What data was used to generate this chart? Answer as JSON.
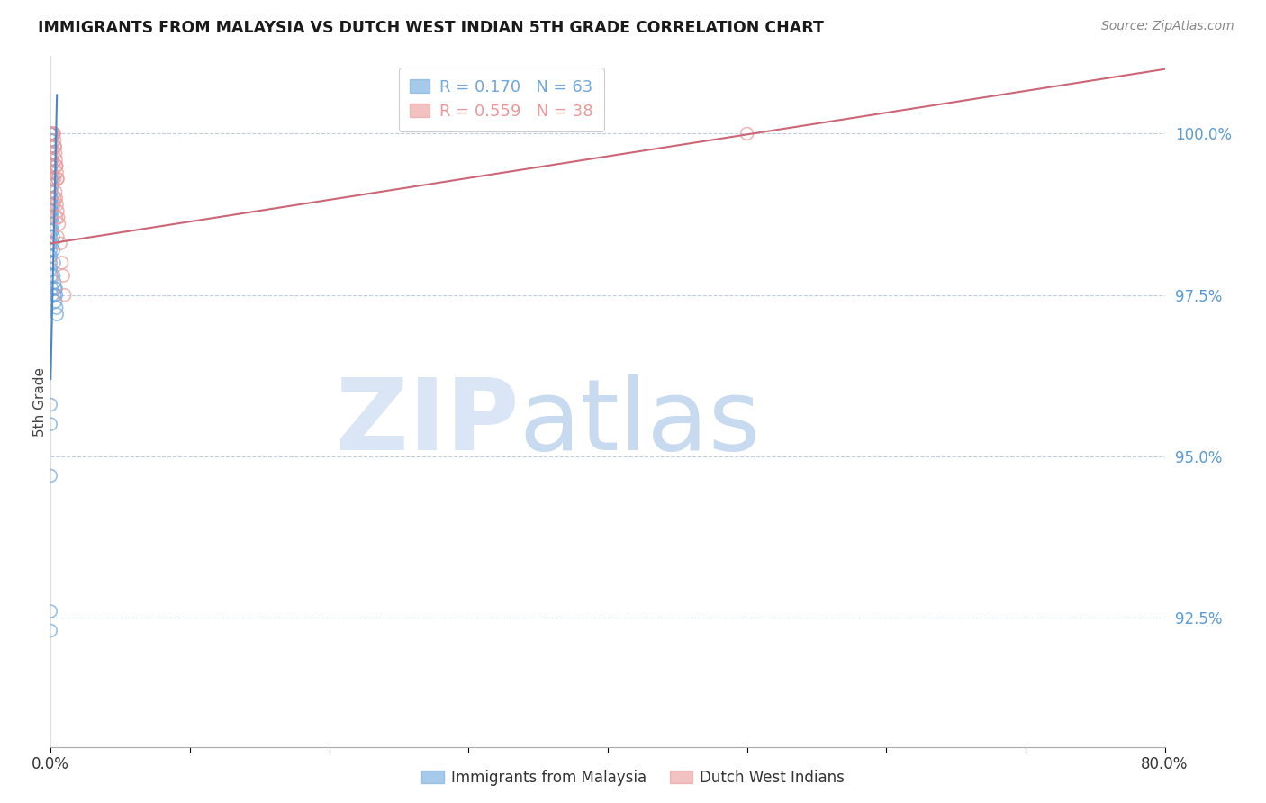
{
  "title": "IMMIGRANTS FROM MALAYSIA VS DUTCH WEST INDIAN 5TH GRADE CORRELATION CHART",
  "source": "Source: ZipAtlas.com",
  "ylabel": "5th Grade",
  "x_range": [
    0.0,
    80.0
  ],
  "y_range": [
    90.5,
    101.2
  ],
  "blue_color": "#6fa8dc",
  "pink_color": "#ea9999",
  "trendline_blue": "#4a86c8",
  "trendline_pink": "#cc6677",
  "blue_R": 0.17,
  "blue_N": 63,
  "pink_R": 0.559,
  "pink_N": 38,
  "blue_label": "Immigrants from Malaysia",
  "pink_label": "Dutch West Indians",
  "y_ticks": [
    92.5,
    95.0,
    97.5,
    100.0
  ],
  "x_tick_show": [
    0.0,
    80.0
  ],
  "blue_points_x": [
    0.0,
    0.0,
    0.0,
    0.0,
    0.0,
    0.0,
    0.0,
    0.0,
    0.0,
    0.0,
    0.0,
    0.0,
    0.0,
    0.0,
    0.0,
    0.0,
    0.0,
    0.0,
    0.0,
    0.0,
    0.0,
    0.0,
    0.0,
    0.0,
    0.0,
    0.0,
    0.0,
    0.0,
    0.0,
    0.0,
    0.03,
    0.03,
    0.05,
    0.05,
    0.07,
    0.08,
    0.09,
    0.1,
    0.1,
    0.12,
    0.13,
    0.15,
    0.16,
    0.18,
    0.2,
    0.22,
    0.25,
    0.28,
    0.3,
    0.32,
    0.35,
    0.38,
    0.4,
    0.42,
    0.45,
    0.05,
    0.08,
    0.12,
    0.0,
    0.0,
    0.0,
    0.0,
    0.0
  ],
  "blue_points_y": [
    100.0,
    100.0,
    100.0,
    100.0,
    100.0,
    100.0,
    99.9,
    99.9,
    99.8,
    99.8,
    99.7,
    99.6,
    99.5,
    99.5,
    99.4,
    99.3,
    99.2,
    99.1,
    99.0,
    98.9,
    98.8,
    98.7,
    98.6,
    98.5,
    98.4,
    98.3,
    98.2,
    98.1,
    98.0,
    97.9,
    99.6,
    99.3,
    99.5,
    99.1,
    99.3,
    99.0,
    98.8,
    99.2,
    98.9,
    98.7,
    98.5,
    98.3,
    98.6,
    98.4,
    98.2,
    97.8,
    98.0,
    97.7,
    97.5,
    97.6,
    97.4,
    97.6,
    97.5,
    97.3,
    97.2,
    97.8,
    97.6,
    97.5,
    95.8,
    95.5,
    94.7,
    92.6,
    92.3
  ],
  "pink_points_x": [
    0.1,
    0.15,
    0.18,
    0.2,
    0.22,
    0.25,
    0.28,
    0.3,
    0.32,
    0.35,
    0.38,
    0.4,
    0.42,
    0.45,
    0.48,
    0.5,
    0.12,
    0.18,
    0.22,
    0.28,
    0.35,
    0.4,
    0.45,
    0.5,
    0.55,
    0.1,
    0.2,
    0.3,
    0.4,
    0.5,
    0.6,
    0.7,
    0.8,
    0.9,
    1.0,
    0.15,
    0.25,
    50.0
  ],
  "pink_points_y": [
    100.0,
    100.0,
    100.0,
    100.0,
    100.0,
    100.0,
    99.9,
    99.8,
    99.8,
    99.7,
    99.6,
    99.5,
    99.5,
    99.4,
    99.3,
    99.3,
    99.8,
    99.7,
    99.5,
    99.3,
    99.1,
    99.0,
    98.9,
    98.8,
    98.7,
    99.6,
    99.3,
    99.0,
    98.7,
    98.4,
    98.6,
    98.3,
    98.0,
    97.8,
    97.5,
    99.2,
    98.9,
    100.0
  ],
  "blue_trendline": [
    [
      0.0,
      0.45
    ],
    [
      96.2,
      100.6
    ]
  ],
  "pink_trendline": [
    [
      0.0,
      80.0
    ],
    [
      98.3,
      101.0
    ]
  ]
}
